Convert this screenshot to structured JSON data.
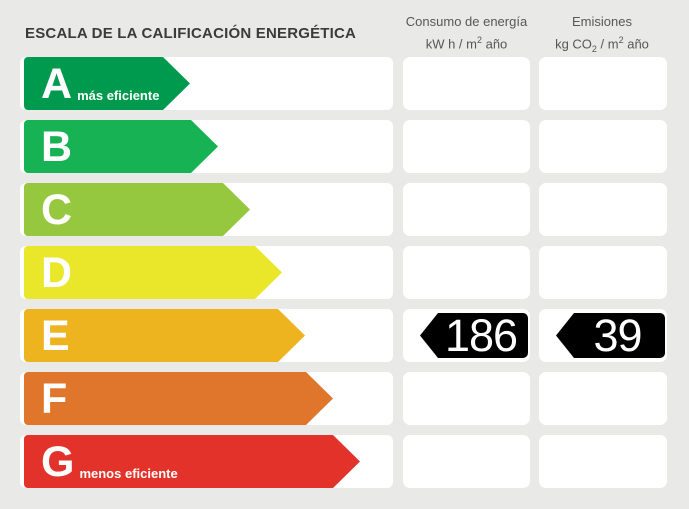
{
  "title": "ESCALA DE LA CALIFICACIÓN ENERGÉTICA",
  "background": "#E9E9E7",
  "badge_color": "#000000",
  "columns": [
    {
      "id": "consumo",
      "title": "Consumo de energía",
      "unit_parts": [
        [
          "t",
          "kW h  / m"
        ],
        [
          "sup",
          "2"
        ],
        [
          "t",
          " año"
        ]
      ]
    },
    {
      "id": "emisiones",
      "title": "Emisiones",
      "unit_parts": [
        [
          "t",
          "kg CO"
        ],
        [
          "sub",
          "2"
        ],
        [
          "t",
          " / m"
        ],
        [
          "sup",
          "2"
        ],
        [
          "t",
          " año"
        ]
      ]
    }
  ],
  "ratings": [
    {
      "letter": "A",
      "color": "#009A4E",
      "arrow_width": 166,
      "note": "más eficiente",
      "consumo": null,
      "emisiones": null
    },
    {
      "letter": "B",
      "color": "#16B254",
      "arrow_width": 194,
      "note": "",
      "consumo": null,
      "emisiones": null
    },
    {
      "letter": "C",
      "color": "#95C83E",
      "arrow_width": 226,
      "note": "",
      "consumo": null,
      "emisiones": null
    },
    {
      "letter": "D",
      "color": "#EAE72B",
      "arrow_width": 258,
      "note": "",
      "consumo": null,
      "emisiones": null
    },
    {
      "letter": "E",
      "color": "#EDB41F",
      "arrow_width": 281,
      "note": "",
      "consumo": "186",
      "emisiones": "39"
    },
    {
      "letter": "F",
      "color": "#E0762B",
      "arrow_width": 309,
      "note": "",
      "consumo": null,
      "emisiones": null
    },
    {
      "letter": "G",
      "color": "#E23229",
      "arrow_width": 336,
      "note": "menos eficiente",
      "consumo": null,
      "emisiones": null
    }
  ],
  "chart_data": {
    "type": "bar",
    "title": "ESCALA DE LA CALIFICACIÓN ENERGÉTICA",
    "categories": [
      "A",
      "B",
      "C",
      "D",
      "E",
      "F",
      "G"
    ],
    "bar_colors": [
      "#009A4E",
      "#16B254",
      "#95C83E",
      "#EAE72B",
      "#EDB41F",
      "#E0762B",
      "#E23229"
    ],
    "category_annotations": {
      "A": "más eficiente",
      "G": "menos eficiente"
    },
    "series": [
      {
        "name": "Consumo de energía (kW h / m² año)",
        "highlighted_category": "E",
        "value": 186
      },
      {
        "name": "Emisiones (kg CO₂ / m² año)",
        "highlighted_category": "E",
        "value": 39
      }
    ],
    "legend_position": "none",
    "grid": false
  }
}
